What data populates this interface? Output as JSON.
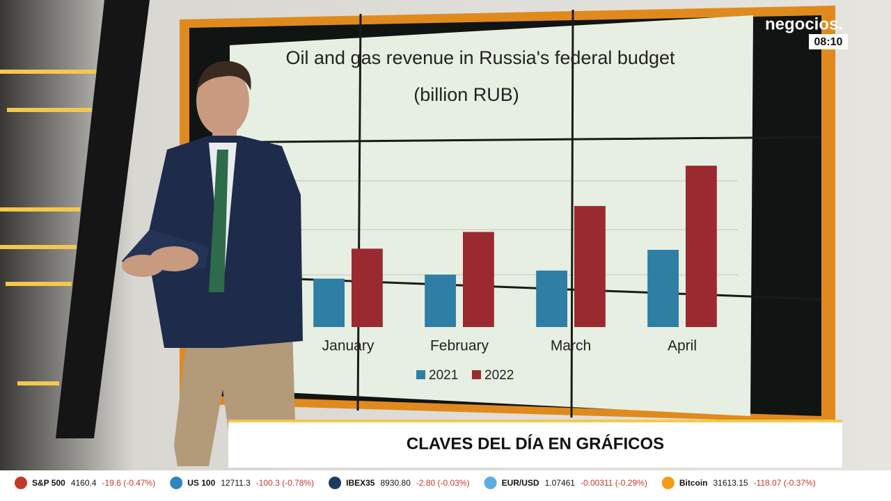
{
  "chart_data": {
    "type": "bar",
    "title": "Oil and gas revenue in Russia's federal budget",
    "subtitle": "(billion RUB)",
    "categories": [
      "January",
      "February",
      "March",
      "April"
    ],
    "series": [
      {
        "name": "2021",
        "color": "#2f7ea6",
        "values": [
          420,
          455,
          490,
          670
        ]
      },
      {
        "name": "2022",
        "color": "#9a2a30",
        "values": [
          680,
          825,
          1050,
          1400
        ]
      }
    ],
    "ylim": [
      0,
      1600
    ],
    "legend": "bottom"
  },
  "brand": {
    "name": "negocios.",
    "time": "08:10"
  },
  "lower_third": "CLAVES DEL DÍA EN GRÁFICOS",
  "ticker": [
    {
      "name": "S&P 500",
      "price": "4160.4",
      "change": "-19.6 (-0.47%)"
    },
    {
      "name": "US 100",
      "price": "12711.3",
      "change": "-100.3 (-0.78%)"
    },
    {
      "name": "IBEX35",
      "price": "8930.80",
      "change": "-2.80 (-0.03%)"
    },
    {
      "name": "EUR/USD",
      "price": "1.07461",
      "change": "-0.00311 (-0.29%)"
    },
    {
      "name": "Bitcoin",
      "price": "31613.15",
      "change": "-118.07 (-0.37%)"
    }
  ]
}
